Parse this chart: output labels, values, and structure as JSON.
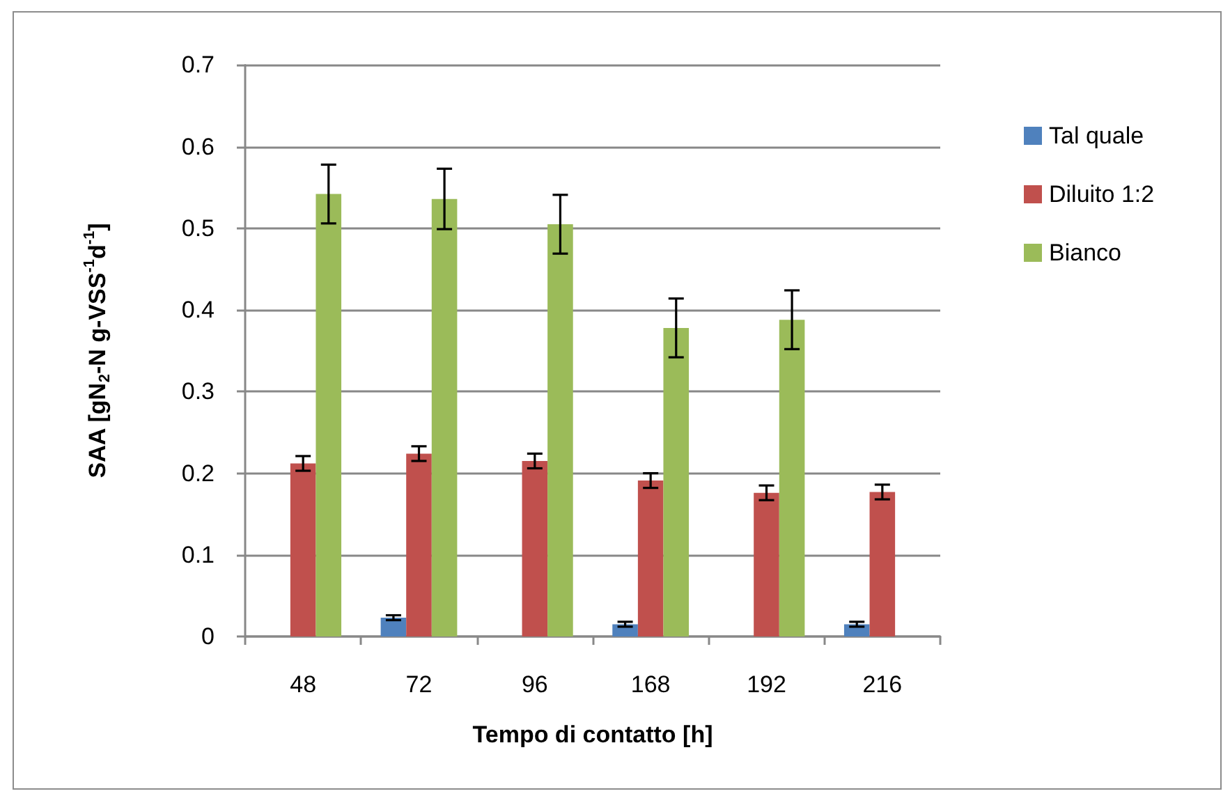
{
  "chart_data": {
    "type": "bar",
    "xlabel": "Tempo di contatto [h]",
    "ylabel": "SAA [gN$_{2}$-N g-VSS$^{-1}$d$^{-1}$]",
    "categories": [
      "48",
      "72",
      "96",
      "168",
      "192",
      "216"
    ],
    "series": [
      {
        "name": "Tal quale",
        "color": "#4f81bd",
        "values": [
          null,
          0.023,
          null,
          0.015,
          null,
          0.015
        ],
        "errors": [
          null,
          0.003,
          null,
          0.003,
          null,
          0.003
        ]
      },
      {
        "name": "Diluito 1:2",
        "color": "#c0504d",
        "values": [
          0.212,
          0.224,
          0.215,
          0.191,
          0.176,
          0.177
        ],
        "errors": [
          0.009,
          0.009,
          0.009,
          0.009,
          0.009,
          0.009
        ]
      },
      {
        "name": "Bianco",
        "color": "#9bbb59",
        "values": [
          0.542,
          0.536,
          0.505,
          0.378,
          0.388,
          null
        ],
        "errors": [
          0.036,
          0.037,
          0.036,
          0.036,
          0.036,
          null
        ]
      }
    ],
    "ylim": [
      0,
      0.7
    ],
    "yticks": [
      0,
      0.1,
      0.2,
      0.3,
      0.4,
      0.5,
      0.6,
      0.7
    ],
    "grid": "y",
    "legend": "right"
  }
}
